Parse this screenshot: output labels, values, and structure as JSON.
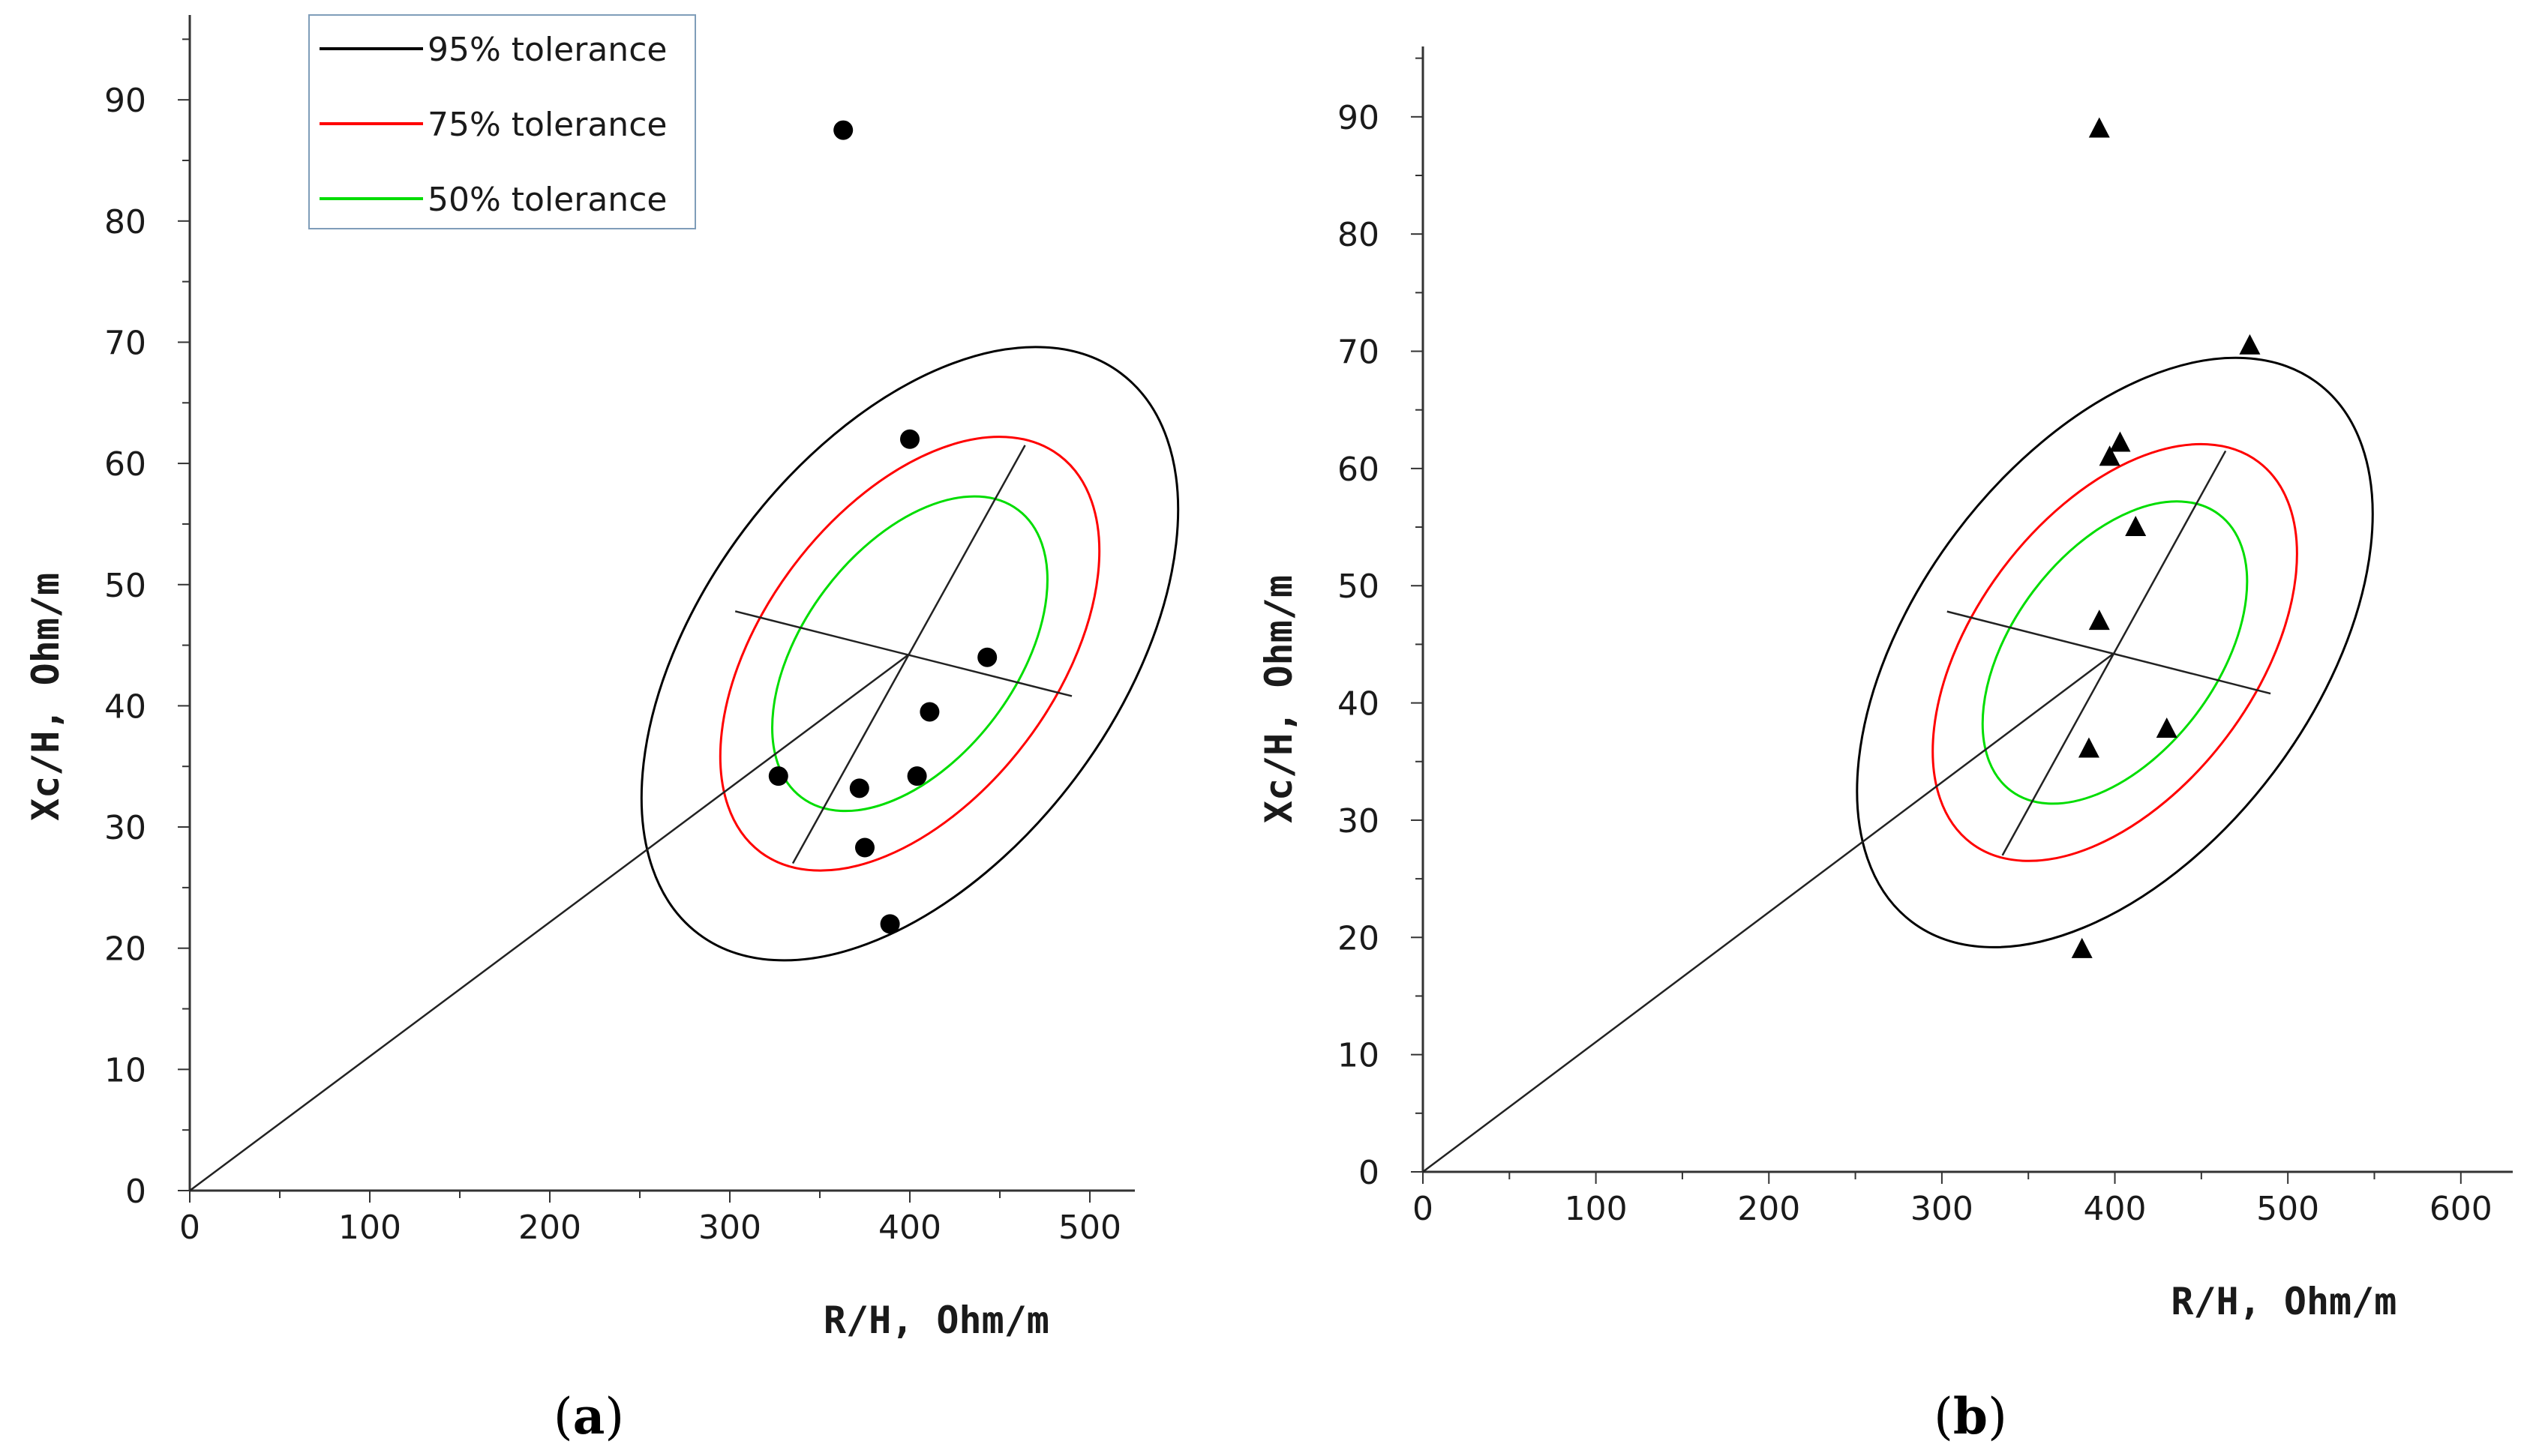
{
  "chart_data": [
    {
      "type": "scatter",
      "panel_label": "a",
      "xlabel": "R/H, Ohm/m",
      "ylabel": "Xc/H, Ohm/m",
      "xlim": [
        0,
        525
      ],
      "ylim": [
        0,
        97
      ],
      "xticks": [
        0,
        100,
        200,
        300,
        400,
        500
      ],
      "yticks": [
        0,
        10,
        20,
        30,
        40,
        50,
        60,
        70,
        80,
        90
      ],
      "legend": {
        "position": "top-left",
        "entries": [
          {
            "label": "95% tolerance",
            "color": "#000000"
          },
          {
            "label": "75% tolerance",
            "color": "#ff0000"
          },
          {
            "label": "50% tolerance",
            "color": "#00dd00"
          }
        ]
      },
      "points": [
        {
          "x": 363,
          "y": 87.5,
          "marker": "circle"
        },
        {
          "x": 400,
          "y": 62,
          "marker": "circle"
        },
        {
          "x": 443,
          "y": 44,
          "marker": "circle"
        },
        {
          "x": 411,
          "y": 39.5,
          "marker": "circle"
        },
        {
          "x": 327,
          "y": 34.2,
          "marker": "circle"
        },
        {
          "x": 404,
          "y": 34.2,
          "marker": "circle"
        },
        {
          "x": 372,
          "y": 33.2,
          "marker": "circle"
        },
        {
          "x": 375,
          "y": 28.3,
          "marker": "circle"
        },
        {
          "x": 389,
          "y": 22,
          "marker": "circle"
        }
      ],
      "center": {
        "x": 400,
        "y": 44.3
      },
      "origin_line": {
        "from": [
          0,
          0
        ],
        "to": [
          400,
          44.3
        ]
      },
      "major_axis": {
        "from": [
          335,
          27
        ],
        "to": [
          464,
          61.5
        ]
      },
      "minor_axis": {
        "from": [
          303,
          47.8
        ],
        "to": [
          490,
          40.8
        ]
      },
      "ellipses": [
        {
          "level": "95%",
          "color": "#000000",
          "center": [
            400,
            44.3
          ],
          "semi_major": 195,
          "semi_minor": 115,
          "angle_deg": 53
        },
        {
          "level": "75%",
          "color": "#ff0000",
          "center": [
            400,
            44.3
          ],
          "semi_major": 138,
          "semi_minor": 81,
          "angle_deg": 53
        },
        {
          "level": "50%",
          "color": "#00dd00",
          "center": [
            400,
            44.3
          ],
          "semi_major": 100,
          "semi_minor": 59,
          "angle_deg": 53
        }
      ]
    },
    {
      "type": "scatter",
      "panel_label": "b",
      "xlabel": "R/H, Ohm/m",
      "ylabel": "Xc/H, Ohm/m",
      "xlim": [
        0,
        630
      ],
      "ylim": [
        0,
        96
      ],
      "xticks": [
        0,
        100,
        200,
        300,
        400,
        500,
        600
      ],
      "yticks": [
        0,
        10,
        20,
        30,
        40,
        50,
        60,
        70,
        80,
        90
      ],
      "points": [
        {
          "x": 391,
          "y": 89,
          "marker": "triangle"
        },
        {
          "x": 478,
          "y": 70.5,
          "marker": "triangle"
        },
        {
          "x": 403,
          "y": 62.2,
          "marker": "triangle"
        },
        {
          "x": 397,
          "y": 61,
          "marker": "triangle"
        },
        {
          "x": 412,
          "y": 55,
          "marker": "triangle"
        },
        {
          "x": 391,
          "y": 47,
          "marker": "triangle"
        },
        {
          "x": 430,
          "y": 37.8,
          "marker": "triangle"
        },
        {
          "x": 385,
          "y": 36.1,
          "marker": "triangle"
        },
        {
          "x": 381,
          "y": 19,
          "marker": "triangle"
        }
      ],
      "center": {
        "x": 400,
        "y": 44.3
      },
      "origin_line": {
        "from": [
          0,
          0
        ],
        "to": [
          400,
          44.3
        ]
      },
      "major_axis": {
        "from": [
          335,
          27
        ],
        "to": [
          464,
          61.5
        ]
      },
      "minor_axis": {
        "from": [
          303,
          47.8
        ],
        "to": [
          490,
          40.8
        ]
      },
      "ellipses": [
        {
          "level": "95%",
          "color": "#000000",
          "center": [
            400,
            44.3
          ],
          "semi_major": 195,
          "semi_minor": 115,
          "angle_deg": 53
        },
        {
          "level": "75%",
          "color": "#ff0000",
          "center": [
            400,
            44.3
          ],
          "semi_major": 138,
          "semi_minor": 81,
          "angle_deg": 53
        },
        {
          "level": "50%",
          "color": "#00dd00",
          "center": [
            400,
            44.3
          ],
          "semi_major": 100,
          "semi_minor": 59,
          "angle_deg": 53
        }
      ]
    }
  ]
}
